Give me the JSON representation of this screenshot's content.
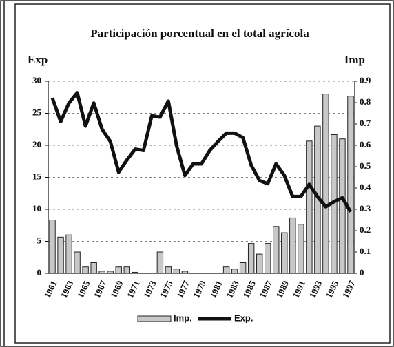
{
  "chart_data": {
    "type": "bar",
    "title": "Participación porcentual en el total agrícola",
    "y_label": "Exp",
    "y2_label": "Imp",
    "categories": [
      "1961",
      null,
      "1963",
      null,
      "1965",
      null,
      "1967",
      null,
      "1969",
      null,
      "1971",
      null,
      "1973",
      null,
      "1975",
      null,
      "1977",
      null,
      "1979",
      null,
      "1981",
      null,
      "1983",
      null,
      "1985",
      null,
      "1987",
      null,
      "1989",
      null,
      "1991",
      null,
      "1993",
      null,
      "1995",
      null,
      "1997"
    ],
    "series": [
      {
        "name": "Imp.",
        "type": "bar",
        "axis": "y2",
        "color": "#c8c8c8",
        "values": [
          0.25,
          0.17,
          0.18,
          0.1,
          0.03,
          0.05,
          0.01,
          0.01,
          0.03,
          0.03,
          0.005,
          0,
          0,
          0.1,
          0.03,
          0.02,
          0.01,
          0,
          0,
          0,
          0,
          0.03,
          0.02,
          0.05,
          0.14,
          0.09,
          0.14,
          0.22,
          0.19,
          0.26,
          0.23,
          0.62,
          0.69,
          0.84,
          0.65,
          0.63,
          0.83
        ]
      },
      {
        "name": "Exp.",
        "type": "line",
        "color": "#111111",
        "values": [
          27.4,
          23.7,
          26.6,
          28.2,
          23.0,
          26.6,
          22.5,
          20.6,
          15.8,
          17.7,
          19.4,
          19.2,
          24.6,
          24.4,
          26.9,
          19.9,
          15.3,
          17.1,
          17.1,
          19.2,
          20.6,
          21.9,
          21.9,
          21.2,
          16.9,
          14.5,
          14.0,
          17.1,
          15.3,
          12.0,
          12.0,
          13.9,
          12.0,
          10.4,
          11.2,
          11.8,
          9.6
        ]
      }
    ],
    "ylim": [
      0,
      30
    ],
    "yticks": [
      0,
      5,
      10,
      15,
      20,
      25,
      30
    ],
    "y2lim": [
      0,
      0.9
    ],
    "y2ticks": [
      0,
      0.1,
      0.2,
      0.3,
      0.4,
      0.5,
      0.6,
      0.7,
      0.8,
      0.9
    ],
    "grid": true,
    "legend": "bottom"
  }
}
